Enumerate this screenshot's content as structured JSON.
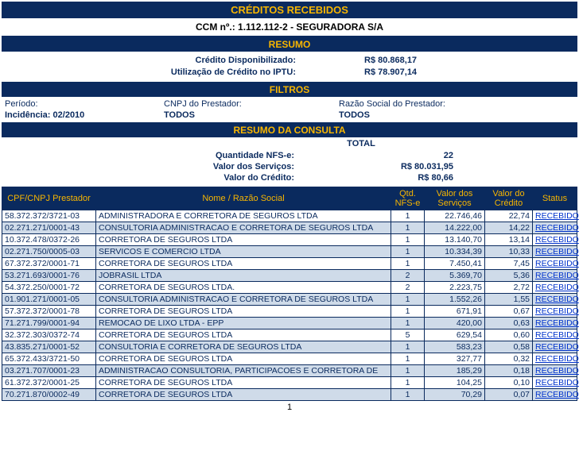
{
  "header": {
    "title": "CRÉDITOS RECEBIDOS",
    "subtitle_prefix": "CCM nº.: ",
    "ccm": "1.112.112-2",
    "subtitle_suffix": " - SEGURADORA S/A"
  },
  "resumo": {
    "label": "RESUMO",
    "credito_disp_label": "Crédito Disponibilizado:",
    "credito_disp_value": "R$ 80.868,17",
    "util_iptu_label": "Utilização de Crédito no IPTU:",
    "util_iptu_value": "R$ 78.907,14"
  },
  "filtros": {
    "label": "FILTROS",
    "periodo_label": "Período:",
    "incidencia_label": "Incidência: ",
    "incidencia_value": "02/2010",
    "cnpj_label": "CNPJ do Prestador:",
    "cnpj_value": "TODOS",
    "razao_label": "Razão Social do Prestador:",
    "razao_value": "TODOS"
  },
  "consulta": {
    "label": "RESUMO DA CONSULTA",
    "total_label": "TOTAL",
    "qtd_nfse_label": "Quantidade NFS-e:",
    "qtd_nfse_value": "22",
    "valor_serv_label": "Valor dos Serviços:",
    "valor_serv_value": "R$ 80.031,95",
    "valor_cred_label": "Valor do Crédito:",
    "valor_cred_value": "R$ 80,66"
  },
  "grid": {
    "headers": {
      "cpf": "CPF/CNPJ Prestador",
      "nome": "Nome / Razão Social",
      "qtd": "Qtd. NFS-e",
      "vs": "Valor dos Serviços",
      "vc": "Valor do Crédito",
      "status": "Status"
    },
    "rows": [
      {
        "cpf": "58.372.372/3721-03",
        "nome": "ADMINISTRADORA E CORRETORA DE SEGUROS LTDA",
        "qtd": "1",
        "vs": "22.746,46",
        "vc": "22,74",
        "status": "RECEBIDO"
      },
      {
        "cpf": "02.271.271/0001-43",
        "nome": "CONSULTORIA ADMINISTRACAO E CORRETORA DE SEGUROS LTDA",
        "qtd": "1",
        "vs": "14.222,00",
        "vc": "14,22",
        "status": "RECEBIDO"
      },
      {
        "cpf": "10.372.478/0372-26",
        "nome": "CORRETORA DE SEGUROS LTDA",
        "qtd": "1",
        "vs": "13.140,70",
        "vc": "13,14",
        "status": "RECEBIDO"
      },
      {
        "cpf": "02.271.750/0005-03",
        "nome": "SERVICOS E COMERCIO LTDA",
        "qtd": "1",
        "vs": "10.334,39",
        "vc": "10,33",
        "status": "RECEBIDO"
      },
      {
        "cpf": "67.372.372/0001-71",
        "nome": "CORRETORA DE SEGUROS LTDA",
        "qtd": "1",
        "vs": "7.450,41",
        "vc": "7,45",
        "status": "RECEBIDO"
      },
      {
        "cpf": "53.271.693/0001-76",
        "nome": "JOBRASIL LTDA",
        "qtd": "2",
        "vs": "5.369,70",
        "vc": "5,36",
        "status": "RECEBIDO"
      },
      {
        "cpf": "54.372.250/0001-72",
        "nome": "CORRETORA DE SEGUROS LTDA.",
        "qtd": "2",
        "vs": "2.223,75",
        "vc": "2,72",
        "status": "RECEBIDO"
      },
      {
        "cpf": "01.901.271/0001-05",
        "nome": "CONSULTORIA ADMINISTRACAO E CORRETORA DE SEGUROS LTDA",
        "qtd": "1",
        "vs": "1.552,26",
        "vc": "1,55",
        "status": "RECEBIDO"
      },
      {
        "cpf": "57.372.372/0001-78",
        "nome": "CORRETORA DE SEGUROS LTDA",
        "qtd": "1",
        "vs": "671,91",
        "vc": "0,67",
        "status": "RECEBIDO"
      },
      {
        "cpf": "71.271.799/0001-94",
        "nome": "REMOCAO DE LIXO LTDA - EPP",
        "qtd": "1",
        "vs": "420,00",
        "vc": "0,63",
        "status": "RECEBIDO"
      },
      {
        "cpf": "32.372.303/0372-74",
        "nome": "CORRETORA DE SEGUROS LTDA",
        "qtd": "5",
        "vs": "629,54",
        "vc": "0,60",
        "status": "RECEBIDO"
      },
      {
        "cpf": "43.835.271/0001-52",
        "nome": "CONSULTORIA E CORRETORA DE SEGUROS LTDA",
        "qtd": "1",
        "vs": "583,23",
        "vc": "0,58",
        "status": "RECEBIDO"
      },
      {
        "cpf": "65.372.433/3721-50",
        "nome": "CORRETORA DE SEGUROS LTDA",
        "qtd": "1",
        "vs": "327,77",
        "vc": "0,32",
        "status": "RECEBIDO"
      },
      {
        "cpf": "03.271.707/0001-23",
        "nome": "ADMINISTRACAO CONSULTORIA, PARTICIPACOES E CORRETORA DE",
        "qtd": "1",
        "vs": "185,29",
        "vc": "0,18",
        "status": "RECEBIDO"
      },
      {
        "cpf": "61.372.372/0001-25",
        "nome": "CORRETORA DE SEGUROS LTDA",
        "qtd": "1",
        "vs": "104,25",
        "vc": "0,10",
        "status": "RECEBIDO"
      },
      {
        "cpf": "70.271.870/0002-49",
        "nome": "CORRETORA DE SEGUROS LTDA",
        "qtd": "1",
        "vs": "70,29",
        "vc": "0,07",
        "status": "RECEBIDO"
      }
    ]
  },
  "pager": {
    "current": "1"
  }
}
